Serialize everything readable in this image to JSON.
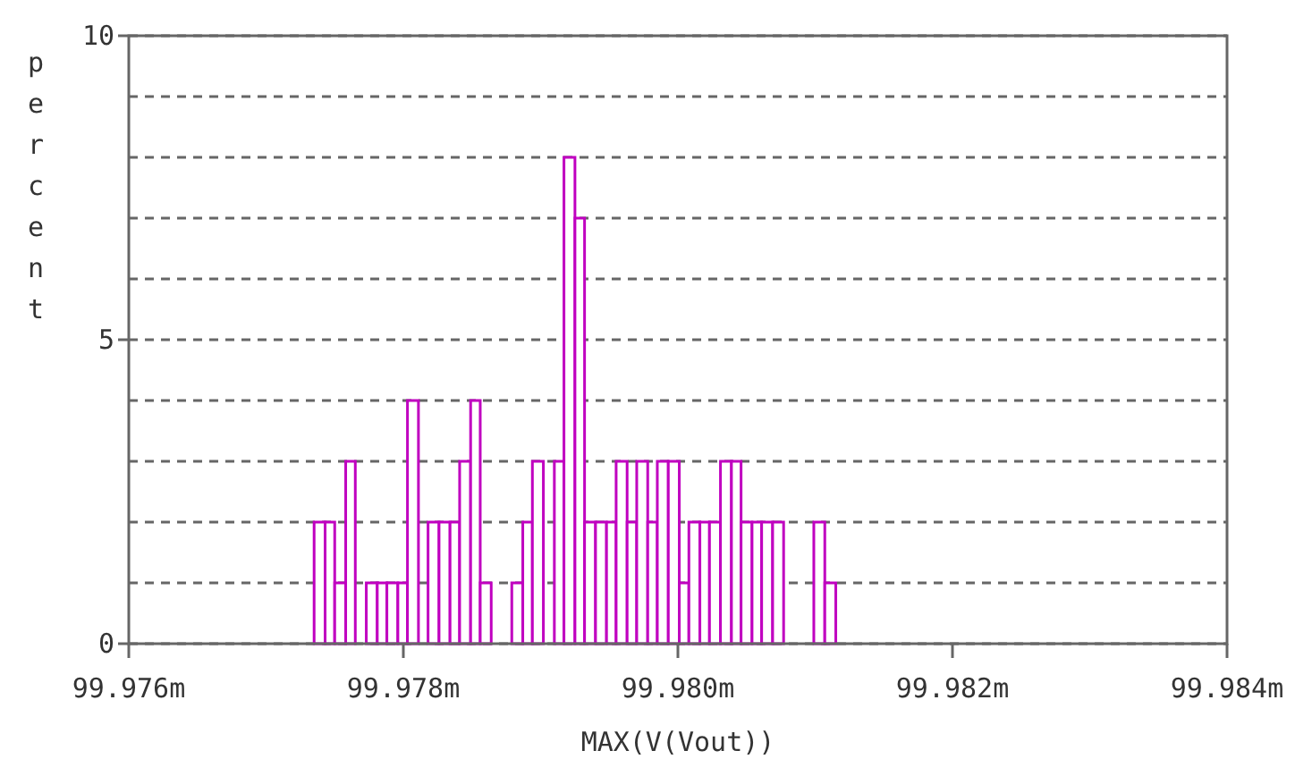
{
  "chart_data": {
    "type": "histogram",
    "xlabel": "MAX(V(Vout))",
    "ylabel": "percent",
    "bins": [
      99.97735,
      99.97743,
      99.9775,
      99.97758,
      99.97765,
      99.97773,
      99.97781,
      99.97788,
      99.97796,
      99.97803,
      99.97811,
      99.97818,
      99.97826,
      99.97834,
      99.97841,
      99.97849,
      99.97856,
      99.97864,
      99.97879,
      99.97887,
      99.97894,
      99.97902,
      99.9791,
      99.97917,
      99.97925,
      99.97932,
      99.9794,
      99.97948,
      99.97955,
      99.97963,
      99.9797,
      99.97978,
      99.97985,
      99.97993,
      99.98001,
      99.98008,
      99.98016,
      99.98023,
      99.98031,
      99.98039,
      99.98046,
      99.98054,
      99.98061,
      99.98069,
      99.98077,
      99.98099,
      99.98107,
      99.98115
    ],
    "values": [
      2,
      2,
      1,
      3,
      0,
      1,
      1,
      1,
      1,
      4,
      0,
      2,
      2,
      2,
      3,
      4,
      1,
      0,
      1,
      2,
      3,
      0,
      3,
      8,
      7,
      2,
      2,
      2,
      3,
      2,
      3,
      2,
      3,
      3,
      1,
      2,
      2,
      2,
      3,
      3,
      2,
      2,
      2,
      2,
      0,
      2,
      1
    ],
    "color": "#c000c0",
    "xlim": [
      99.976,
      99.984
    ],
    "xticks": [
      {
        "value": 99.976,
        "label": "99.976m"
      },
      {
        "value": 99.978,
        "label": "99.978m"
      },
      {
        "value": 99.98,
        "label": "99.980m"
      },
      {
        "value": 99.982,
        "label": "99.982m"
      },
      {
        "value": 99.984,
        "label": "99.984m"
      }
    ],
    "ylim": [
      0,
      10
    ],
    "yticks": [
      0,
      {
        "value": 1,
        "label": null
      },
      {
        "value": 2,
        "label": null
      },
      {
        "value": 3,
        "label": null
      },
      {
        "value": 4,
        "label": null
      },
      5,
      {
        "value": 6,
        "label": null
      },
      {
        "value": 7,
        "label": null
      },
      {
        "value": 8,
        "label": null
      },
      {
        "value": 9,
        "label": null
      },
      10
    ],
    "grid": "y"
  }
}
